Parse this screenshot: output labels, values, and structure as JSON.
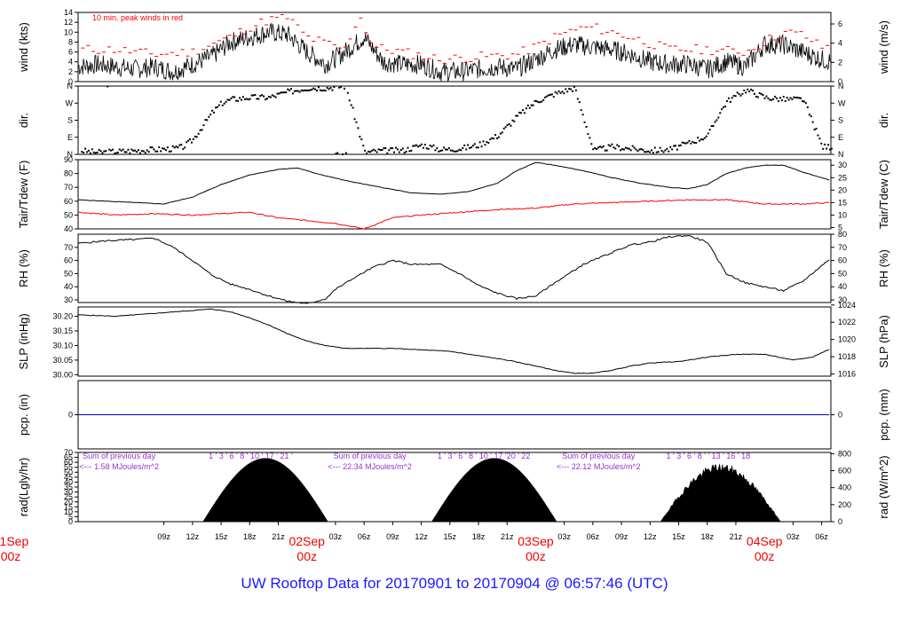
{
  "page": {
    "title": "UW Rooftop Data for 20170901  to  20170904 @ 06:57:46  (UTC)"
  },
  "colors": {
    "axis": "#000000",
    "peak": "#ff0000",
    "dew": "#ff0000",
    "precip": "#0000cc",
    "note": "#9933cc",
    "date": "#ee0000",
    "title": "#1a1aff"
  },
  "time_axis": {
    "x_range_hours": [
      0,
      78.97
    ],
    "x_start_label": "01Sep 00z",
    "ticks": [
      {
        "h": 9,
        "label": "09z"
      },
      {
        "h": 12,
        "label": "12z"
      },
      {
        "h": 15,
        "label": "15z"
      },
      {
        "h": 18,
        "label": "18z"
      },
      {
        "h": 21,
        "label": "21z"
      },
      {
        "h": 27,
        "label": "03z"
      },
      {
        "h": 30,
        "label": "06z"
      },
      {
        "h": 33,
        "label": "09z"
      },
      {
        "h": 36,
        "label": "12z"
      },
      {
        "h": 39,
        "label": "15z"
      },
      {
        "h": 42,
        "label": "18z"
      },
      {
        "h": 45,
        "label": "21z"
      },
      {
        "h": 51,
        "label": "03z"
      },
      {
        "h": 54,
        "label": "06z"
      },
      {
        "h": 57,
        "label": "09z"
      },
      {
        "h": 60,
        "label": "12z"
      },
      {
        "h": 63,
        "label": "15z"
      },
      {
        "h": 66,
        "label": "18z"
      },
      {
        "h": 69,
        "label": "21z"
      },
      {
        "h": 75,
        "label": "03z"
      },
      {
        "h": 78,
        "label": "06z"
      }
    ],
    "day_labels": [
      {
        "h": 0,
        "day": "01Sep",
        "z": "00z"
      },
      {
        "h": 24,
        "day": "02Sep",
        "z": "00z"
      },
      {
        "h": 48,
        "day": "03Sep",
        "z": "00z"
      },
      {
        "h": 72,
        "day": "04Sep",
        "z": "00z"
      }
    ]
  },
  "chart_data": [
    {
      "id": "wind",
      "type": "line",
      "ylabel_left": "wind (kts)",
      "ylabel_right": "wind (m/s)",
      "ylim": [
        0,
        14
      ],
      "left_ticks": [
        0,
        2,
        4,
        6,
        8,
        10,
        12,
        14
      ],
      "right_ticks": [
        0,
        2,
        4,
        6
      ],
      "annotation": "10 min. peak winds in red",
      "series": [
        {
          "name": "wind",
          "x": [
            0,
            2,
            4,
            6,
            8,
            10,
            12,
            14,
            16,
            18,
            20,
            22,
            24,
            26,
            28,
            30,
            32,
            34,
            36,
            38,
            40,
            42,
            44,
            46,
            48,
            50,
            52,
            54,
            56,
            58,
            60,
            62,
            64,
            66,
            68,
            70,
            72,
            74,
            76,
            78,
            79
          ],
          "y": [
            3,
            3.5,
            3,
            2.5,
            3,
            2,
            3.5,
            5,
            8,
            9,
            10,
            9.5,
            6,
            3.5,
            6,
            9,
            4,
            3.5,
            3.5,
            2,
            2,
            2.5,
            3,
            2.5,
            4.5,
            6.5,
            7.5,
            7,
            6.5,
            5.5,
            4,
            3.5,
            3.5,
            2.5,
            4,
            3,
            7.5,
            7.5,
            6,
            4.5,
            4
          ]
        },
        {
          "name": "10 min. peak winds",
          "x": [
            0,
            4,
            8,
            12,
            16,
            18,
            20,
            22,
            24,
            28,
            29.5,
            31,
            34,
            38,
            42,
            46,
            48,
            50,
            52,
            54,
            58,
            62,
            66,
            70,
            72,
            74,
            76,
            78
          ],
          "y": [
            6.5,
            6.5,
            5.5,
            6,
            9,
            11,
            12.5,
            13,
            9,
            6.5,
            13.5,
            7,
            6,
            4.5,
            5,
            5.5,
            7,
            9,
            10.5,
            11,
            9,
            6.5,
            6.5,
            6,
            8,
            10,
            9.5,
            7
          ]
        }
      ]
    },
    {
      "id": "dir",
      "type": "scatter",
      "ylabel_left": "dir.",
      "ylabel_right": "dir.",
      "left_ticks": [
        "N",
        "E",
        "S",
        "W",
        "N"
      ],
      "right_ticks": [
        "N",
        "E",
        "S",
        "W",
        "N"
      ],
      "ylim": [
        0,
        360
      ],
      "series": [
        {
          "name": "direction",
          "x": [
            0,
            2,
            4,
            6,
            8,
            10,
            11,
            12,
            13,
            14,
            15,
            16,
            18,
            20,
            22,
            24,
            26,
            28,
            30,
            32,
            34,
            36,
            38,
            40,
            42,
            44,
            46,
            48,
            50,
            52,
            54,
            56,
            58,
            60,
            62,
            64,
            66,
            67,
            68,
            70,
            72,
            74,
            76,
            78
          ],
          "y": [
            20,
            10,
            15,
            20,
            25,
            30,
            40,
            80,
            150,
            220,
            270,
            290,
            300,
            300,
            330,
            350,
            350,
            360,
            10,
            20,
            20,
            50,
            25,
            30,
            50,
            100,
            200,
            280,
            320,
            350,
            20,
            40,
            30,
            20,
            25,
            60,
            100,
            200,
            280,
            340,
            300,
            290,
            290,
            40
          ]
        }
      ]
    },
    {
      "id": "temp",
      "type": "line",
      "ylabel_left": "Tair/Tdew (F)",
      "ylabel_right": "Tair/Tdew (C)",
      "ylim": [
        40,
        90
      ],
      "left_ticks": [
        40,
        50,
        60,
        70,
        80,
        90
      ],
      "right_ticks": [
        5,
        10,
        15,
        20,
        25,
        30
      ],
      "series": [
        {
          "name": "Tair",
          "x": [
            0,
            3,
            6,
            9,
            12,
            15,
            18,
            21,
            23,
            25,
            28,
            31,
            35,
            38,
            41,
            44,
            46,
            48,
            50,
            53,
            56,
            59,
            62,
            64,
            66,
            68,
            70,
            72,
            74,
            76,
            79
          ],
          "y": [
            61,
            60,
            59,
            58,
            63,
            72,
            79,
            83,
            84,
            80,
            75,
            71,
            66,
            65,
            67,
            73,
            82,
            88,
            86,
            82,
            77,
            73,
            70,
            69,
            72,
            80,
            84,
            86,
            86,
            81,
            75
          ]
        },
        {
          "name": "Tdew",
          "x": [
            0,
            4,
            8,
            12,
            15,
            18,
            21,
            24,
            27,
            30,
            33,
            36,
            40,
            44,
            48,
            52,
            56,
            60,
            64,
            68,
            72,
            76,
            79
          ],
          "y": [
            52,
            50,
            51,
            50,
            51,
            52,
            48,
            46,
            44,
            40,
            48,
            50,
            52,
            54,
            55,
            58,
            59,
            60,
            61,
            61,
            58,
            58,
            59
          ]
        }
      ]
    },
    {
      "id": "rh",
      "type": "line",
      "ylabel_left": "RH (%)",
      "ylabel_right": "RH (%)",
      "ylim": [
        28,
        80
      ],
      "left_ticks": [
        30,
        40,
        50,
        60,
        70
      ],
      "right_ticks": [
        30,
        40,
        50,
        60,
        70,
        80
      ],
      "series": [
        {
          "name": "RH",
          "x": [
            0,
            3,
            6,
            8,
            10,
            12,
            14,
            16,
            18,
            20,
            22,
            24,
            26,
            27,
            29,
            31,
            33,
            35,
            38,
            40,
            42,
            44,
            46,
            48,
            50,
            53,
            56,
            58,
            60,
            62,
            64,
            66,
            68,
            70,
            72,
            74,
            76,
            79
          ],
          "y": [
            73,
            75,
            76,
            77,
            70,
            60,
            49,
            42,
            38,
            33,
            29,
            27,
            31,
            38,
            47,
            55,
            60,
            57,
            57,
            50,
            41,
            35,
            31,
            33,
            43,
            57,
            66,
            72,
            74,
            78,
            79,
            74,
            50,
            43,
            40,
            37,
            44,
            62
          ]
        }
      ]
    },
    {
      "id": "slp",
      "type": "line",
      "ylabel_left": "SLP (inHg)",
      "ylabel_right": "SLP (hPa)",
      "ylim": [
        29.995,
        30.232
      ],
      "left_ticks": [
        "30.00",
        "30.05",
        "30.10",
        "30.15",
        "30.20"
      ],
      "right_ticks": [
        1016,
        1018,
        1020,
        1022,
        1024
      ],
      "series": [
        {
          "name": "SLP",
          "x": [
            0,
            4,
            8,
            12,
            14,
            16,
            18,
            20,
            22,
            24,
            26,
            28,
            30,
            33,
            36,
            39,
            42,
            45,
            48,
            50,
            52,
            54,
            56,
            58,
            60,
            63,
            66,
            69,
            72,
            75,
            77,
            79
          ],
          "y": [
            30.205,
            30.2,
            30.21,
            30.22,
            30.225,
            30.215,
            30.195,
            30.17,
            30.14,
            30.115,
            30.1,
            30.09,
            30.09,
            30.09,
            30.085,
            30.08,
            30.065,
            30.05,
            30.03,
            30.015,
            30.005,
            30.005,
            30.015,
            30.03,
            30.04,
            30.045,
            30.06,
            30.07,
            30.07,
            30.05,
            30.06,
            30.09
          ]
        }
      ]
    },
    {
      "id": "pcp",
      "type": "line",
      "ylabel_left": "pcp. (in)",
      "ylabel_right": "pcp. (mm)",
      "ylim": [
        -1,
        1
      ],
      "left_ticks": [
        0
      ],
      "right_ticks": [
        0
      ],
      "series": [
        {
          "name": "precip",
          "x": [
            0,
            79
          ],
          "y": [
            0,
            0
          ]
        }
      ]
    },
    {
      "id": "rad",
      "type": "area",
      "ylabel_left": "rad(Lgly/hr)",
      "ylabel_right": "rad (W/m^2)",
      "ylim": [
        0,
        70
      ],
      "left_ticks": [
        0,
        5,
        10,
        15,
        20,
        25,
        30,
        35,
        40,
        45,
        50,
        55,
        60,
        65,
        70
      ],
      "right_ticks": [
        0,
        200,
        400,
        600,
        800
      ],
      "series": [
        {
          "name": "radiation",
          "days": [
            {
              "rise": 13.1,
              "set": 26.2,
              "peak": 64
            },
            {
              "rise": 37.1,
              "set": 50.2,
              "peak": 64
            },
            {
              "rise": 61.1,
              "set": 73.7,
              "peak": 57
            }
          ]
        }
      ],
      "annotations": [
        {
          "h": 4.3,
          "line1": "Sum of previous day",
          "line2": "<--- 1.58 MJoules/m^2"
        },
        {
          "h": 30.6,
          "line1": "Sum of previous day",
          "line2": "<--- 22.34 MJoules/m^2"
        },
        {
          "h": 54.6,
          "line1": "Sum of previous day",
          "line2": "<--- 22.12 MJoules/m^2"
        }
      ],
      "hour_labels": [
        {
          "h": 13.7,
          "text": "1 ' 3 ' 6 ' 8 ' 10 ' 17 ' 21 '"
        },
        {
          "h": 37.7,
          "text": "1 ' 3 ' 6 ' 8 ' 10 ' 17 '20 '    22"
        },
        {
          "h": 61.7,
          "text": "1 ' 3 ' 6 ' 8 '  ' 13 ' 16 ' 18"
        }
      ]
    }
  ]
}
